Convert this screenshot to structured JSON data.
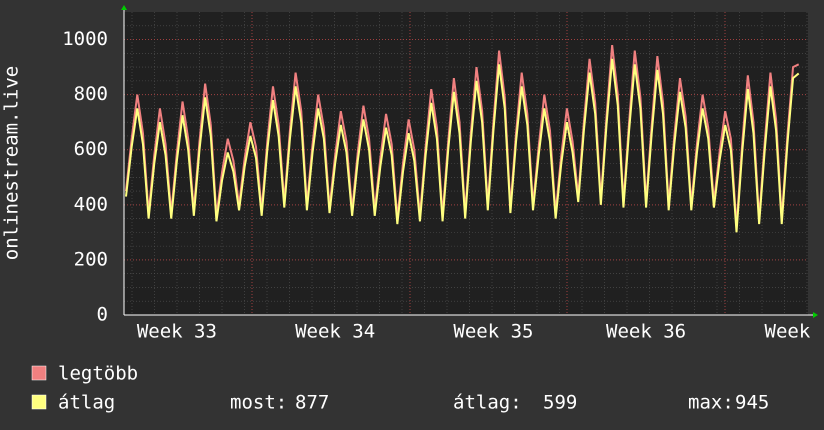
{
  "chart_data": {
    "type": "line",
    "y_label": "onlinestream.live",
    "ylim": [
      0,
      1100
    ],
    "yticks": [
      0,
      200,
      400,
      600,
      800,
      1000
    ],
    "grid": true,
    "categories": [
      null,
      null,
      null,
      null,
      null,
      null,
      null,
      null,
      null,
      "Week 33",
      null,
      null,
      null,
      null,
      null,
      null,
      null,
      null,
      null,
      null,
      null,
      null,
      null,
      null,
      null,
      null,
      null,
      null,
      null,
      null,
      null,
      null,
      null,
      null,
      null,
      null,
      null,
      "Week 34",
      null,
      null,
      null,
      null,
      null,
      null,
      null,
      null,
      null,
      null,
      null,
      null,
      null,
      null,
      null,
      null,
      null,
      null,
      null,
      null,
      null,
      null,
      null,
      null,
      null,
      null,
      null,
      "Week 35",
      null,
      null,
      null,
      null,
      null,
      null,
      null,
      null,
      null,
      null,
      null,
      null,
      null,
      null,
      null,
      null,
      null,
      null,
      null,
      null,
      null,
      null,
      null,
      null,
      null,
      null,
      "Week 36",
      null,
      null,
      null,
      null,
      null,
      null,
      null,
      null,
      null,
      null,
      null,
      null,
      null,
      null,
      null,
      null,
      null,
      null,
      null,
      null,
      null,
      null,
      null,
      null,
      "Week",
      null,
      null
    ],
    "series": [
      {
        "name": "legtöbb",
        "color": "#f08080",
        "values": [
          450,
          640,
          800,
          660,
          370,
          580,
          750,
          620,
          370,
          590,
          775,
          640,
          380,
          630,
          840,
          690,
          360,
          520,
          640,
          560,
          400,
          570,
          700,
          610,
          380,
          630,
          830,
          690,
          410,
          670,
          880,
          740,
          400,
          620,
          800,
          680,
          390,
          580,
          740,
          630,
          380,
          590,
          760,
          640,
          380,
          570,
          730,
          620,
          350,
          550,
          710,
          600,
          360,
          610,
          820,
          680,
          360,
          630,
          860,
          700,
          370,
          660,
          900,
          740,
          400,
          700,
          960,
          790,
          390,
          660,
          880,
          730,
          400,
          610,
          800,
          670,
          370,
          580,
          750,
          630,
          430,
          700,
          930,
          770,
          420,
          720,
          980,
          800,
          410,
          700,
          960,
          790,
          410,
          690,
          940,
          770,
          400,
          650,
          860,
          720,
          400,
          620,
          800,
          680,
          410,
          590,
          740,
          640,
          320,
          620,
          870,
          700,
          350,
          630,
          880,
          710,
          350,
          650,
          900,
          910
        ]
      },
      {
        "name": "átlag",
        "color": "#ffff80",
        "values": [
          430,
          610,
          750,
          620,
          350,
          550,
          700,
          580,
          350,
          560,
          725,
          600,
          360,
          600,
          790,
          650,
          340,
          490,
          590,
          520,
          380,
          540,
          650,
          570,
          360,
          600,
          780,
          650,
          390,
          640,
          830,
          700,
          380,
          590,
          750,
          640,
          370,
          550,
          690,
          590,
          360,
          560,
          710,
          600,
          360,
          540,
          680,
          580,
          330,
          520,
          660,
          560,
          340,
          580,
          770,
          640,
          340,
          600,
          810,
          660,
          350,
          630,
          850,
          700,
          380,
          670,
          910,
          750,
          370,
          630,
          830,
          690,
          380,
          580,
          750,
          630,
          350,
          550,
          700,
          590,
          410,
          670,
          880,
          730,
          400,
          690,
          930,
          760,
          390,
          670,
          910,
          750,
          390,
          660,
          890,
          730,
          380,
          620,
          810,
          680,
          380,
          590,
          750,
          640,
          390,
          560,
          690,
          600,
          300,
          590,
          820,
          660,
          330,
          600,
          830,
          670,
          330,
          620,
          860,
          877
        ]
      }
    ],
    "stats": [
      {
        "label": "most:",
        "value": 877
      },
      {
        "label": "átlag:",
        "value": 599
      },
      {
        "label": "max:",
        "value": 945
      }
    ]
  }
}
